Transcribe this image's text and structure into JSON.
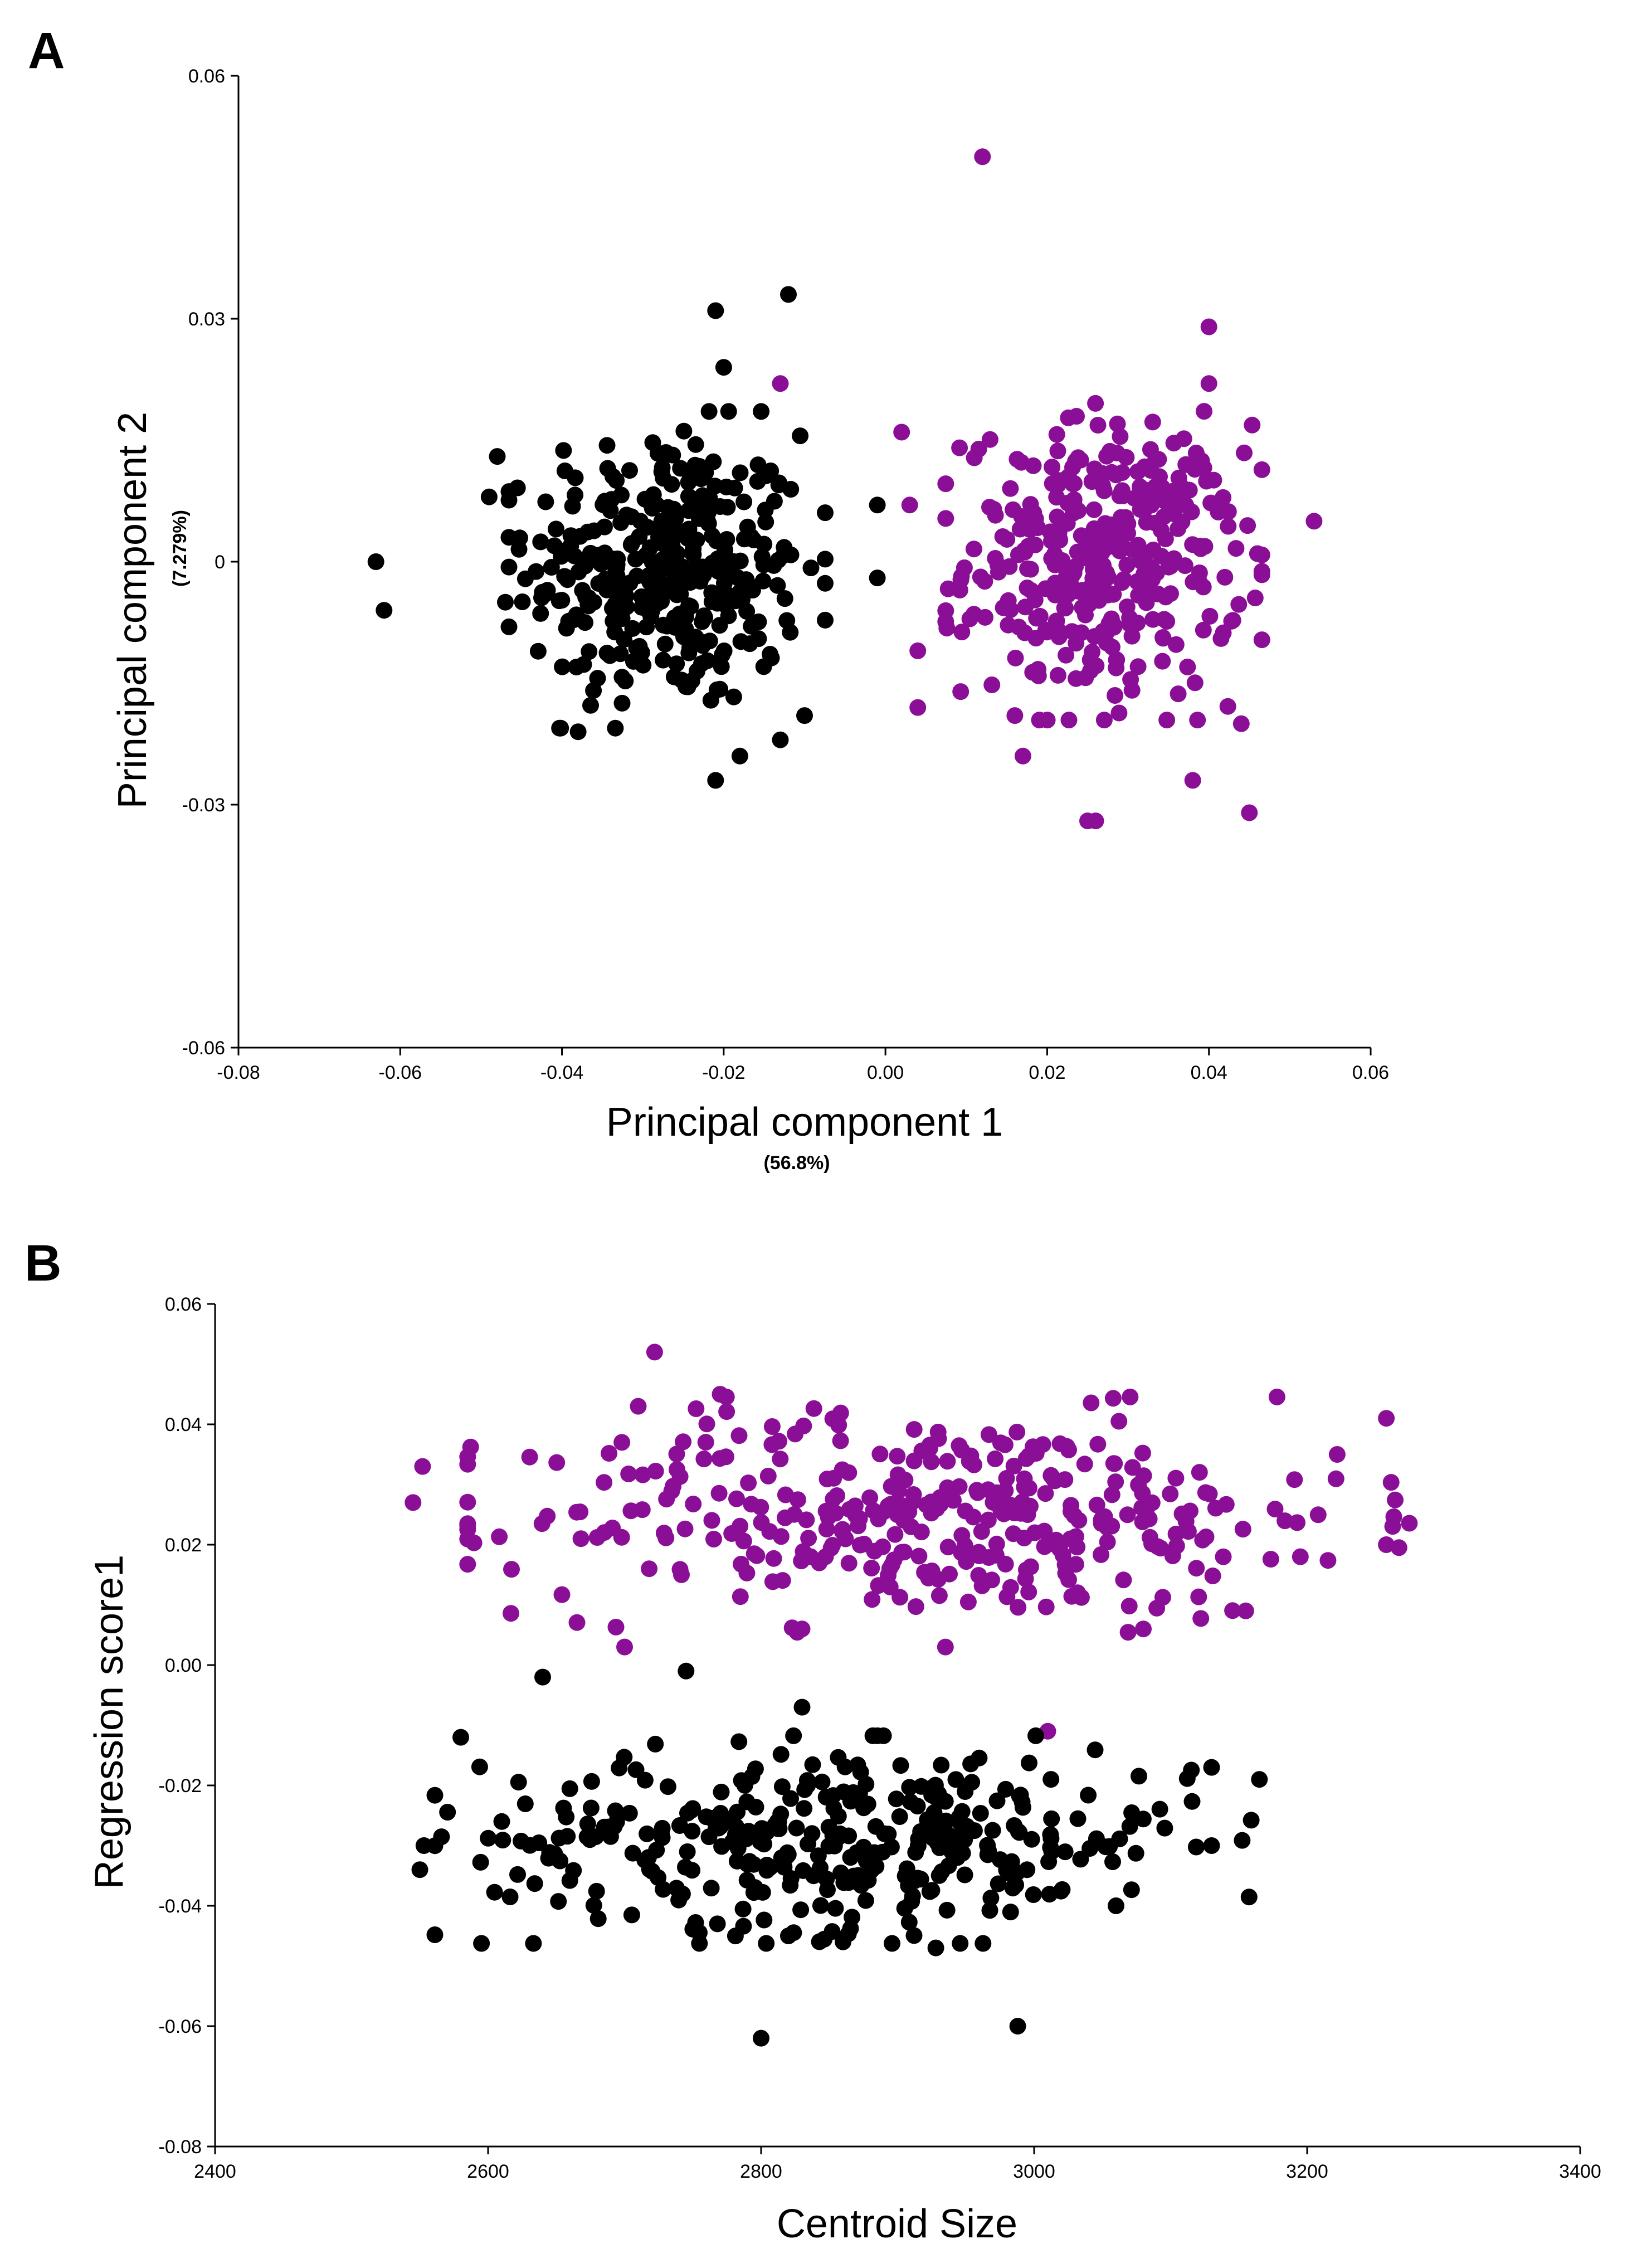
{
  "colors": {
    "series_black": "#000000",
    "series_purple": "#8b0f96"
  },
  "chart_data": [
    {
      "panel_label": "A",
      "type": "scatter",
      "title": "",
      "xlabel": "Principal component 1",
      "xlabel_sub": "(56.8%)",
      "ylabel": "Principal component 2",
      "ylabel_sub": "(7.279%)",
      "xlim": [
        -0.08,
        0.06
      ],
      "ylim": [
        -0.06,
        0.06
      ],
      "xticks": [
        -0.08,
        -0.06,
        -0.04,
        -0.02,
        0.0,
        0.02,
        0.04,
        0.06
      ],
      "xtick_labels": [
        "-0.08",
        "-0.06",
        "-0.04",
        "-0.02",
        "0.00",
        "0.02",
        "0.04",
        "0.06"
      ],
      "yticks": [
        -0.06,
        -0.03,
        0,
        0.03,
        0.06
      ],
      "ytick_labels": [
        "-0.06",
        "-0.03",
        "0",
        "0.03",
        "0.06"
      ],
      "grid": false,
      "legend": "none",
      "series": [
        {
          "color": "#000000",
          "cluster": {
            "x_mean": -0.027,
            "y_mean": -0.001,
            "x_sd": 0.0085,
            "y_sd": 0.0085,
            "count": 360
          },
          "x": [
            -0.063,
            -0.062,
            -0.012,
            -0.021,
            -0.02,
            -0.001,
            -0.001,
            -0.049,
            -0.048,
            -0.047,
            -0.038,
            -0.021,
            -0.013,
            -0.018,
            -0.01
          ],
          "y": [
            0.0,
            -0.006,
            0.033,
            0.031,
            0.024,
            0.007,
            -0.002,
            0.008,
            0.013,
            -0.005,
            -0.021,
            -0.027,
            -0.022,
            -0.024,
            -0.019
          ]
        },
        {
          "color": "#8b0f96",
          "cluster": {
            "x_mean": 0.027,
            "y_mean": 0.0,
            "x_sd": 0.0085,
            "y_sd": 0.0085,
            "count": 360
          },
          "x": [
            0.012,
            -0.013,
            0.04,
            0.053,
            0.045,
            0.025,
            0.026,
            0.038,
            0.044,
            0.002,
            0.004,
            0.016,
            0.017,
            0.004,
            0.003,
            0.046,
            0.04
          ],
          "y": [
            0.05,
            0.022,
            0.029,
            0.005,
            -0.031,
            -0.032,
            -0.032,
            -0.027,
            -0.02,
            0.016,
            -0.018,
            -0.019,
            -0.024,
            -0.011,
            0.007,
            0.001,
            0.022
          ]
        }
      ]
    },
    {
      "panel_label": "B",
      "type": "scatter",
      "title": "",
      "xlabel": "Centroid Size",
      "ylabel": "Regression score1",
      "xlim": [
        2400,
        3400
      ],
      "ylim": [
        -0.08,
        0.06
      ],
      "xticks": [
        2400,
        2600,
        2800,
        3000,
        3200,
        3400
      ],
      "xtick_labels": [
        "2400",
        "2600",
        "2800",
        "3000",
        "3200",
        "3400"
      ],
      "yticks": [
        -0.08,
        -0.06,
        -0.04,
        -0.02,
        0.0,
        0.02,
        0.04,
        0.06
      ],
      "ytick_labels": [
        "-0.08",
        "-0.06",
        "-0.04",
        "-0.02",
        "0.00",
        "0.02",
        "0.04",
        "0.06"
      ],
      "grid": false,
      "legend": "none",
      "series": [
        {
          "color": "#8b0f96",
          "cluster": {
            "x_mean": 2930,
            "y_mean": 0.025,
            "x_sd": 150,
            "y_sd": 0.0085,
            "count": 360
          },
          "x": [
            2545,
            2552,
            2722,
            2710,
            2770,
            2698,
            3258,
            3258,
            3222,
            3195,
            3155,
            2700,
            2718,
            2668,
            2935,
            2830,
            3080,
            3010
          ],
          "y": [
            0.027,
            0.033,
            0.052,
            0.043,
            0.045,
            0.037,
            0.041,
            0.02,
            0.035,
            0.018,
            0.009,
            0.003,
            0.016,
            0.021,
            0.003,
            0.006,
            0.006,
            -0.011
          ]
        },
        {
          "color": "#000000",
          "cluster": {
            "x_mean": 2860,
            "y_mean": -0.029,
            "x_sd": 130,
            "y_sd": 0.0075,
            "count": 360
          },
          "x": [
            2800,
            2988,
            2550,
            2553,
            2580,
            2610,
            2640,
            2745,
            3165,
            3130,
            3130,
            3060,
            2928,
            2820,
            2860,
            2768,
            2830
          ],
          "y": [
            -0.062,
            -0.06,
            -0.034,
            -0.03,
            -0.012,
            -0.026,
            -0.002,
            -0.001,
            -0.019,
            -0.03,
            -0.017,
            -0.04,
            -0.047,
            -0.045,
            -0.046,
            -0.043,
            -0.007
          ]
        }
      ]
    }
  ]
}
